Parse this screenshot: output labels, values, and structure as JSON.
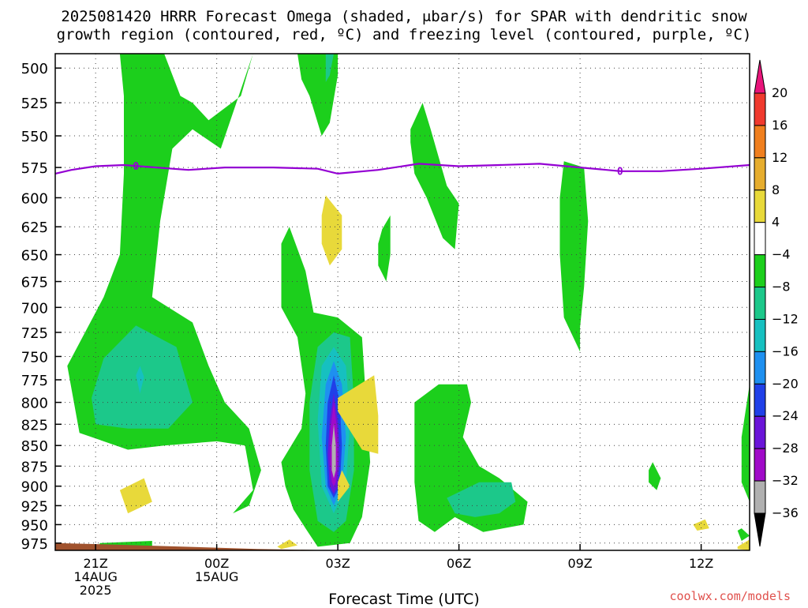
{
  "header": {
    "title_line1": "2025081420 HRRR Forecast Omega (shaded, μbar/s) for SPAR with dendritic snow",
    "title_line2": "growth region (contoured, red, ºC) and freezing level (contoured, purple, ºC)"
  },
  "footer": {
    "source": "coolwx.com/models"
  },
  "chart_data": {
    "type": "heatmap",
    "title": "2025081420 HRRR Forecast Omega (shaded, μbar/s) for SPAR with dendritic snow growth region (contoured, red, ºC) and freezing level (contoured, purple, ºC)",
    "xlabel": "Forecast Time (UTC)",
    "ylabel": "",
    "x_ticks": [
      {
        "hour": 21,
        "label": "21Z",
        "date": "14AUG",
        "year": "2025"
      },
      {
        "hour": 24,
        "label": "00Z",
        "date": "15AUG",
        "year": ""
      },
      {
        "hour": 27,
        "label": "03Z",
        "date": "",
        "year": ""
      },
      {
        "hour": 30,
        "label": "06Z",
        "date": "",
        "year": ""
      },
      {
        "hour": 33,
        "label": "09Z",
        "date": "",
        "year": ""
      },
      {
        "hour": 36,
        "label": "12Z",
        "date": "",
        "year": ""
      }
    ],
    "xlim": [
      20,
      37.2
    ],
    "y_ticks": [
      500,
      525,
      550,
      575,
      600,
      625,
      650,
      675,
      700,
      725,
      750,
      775,
      800,
      825,
      850,
      875,
      900,
      925,
      950,
      975
    ],
    "ylim": [
      490,
      985
    ],
    "y_scale": "log",
    "grid": true,
    "colorbar": {
      "labels": [
        "20",
        "16",
        "12",
        "8",
        "4",
        "−4",
        "−8",
        "−12",
        "−16",
        "−20",
        "−24",
        "−28",
        "−32",
        "−36"
      ],
      "colors": [
        "#e8147a",
        "#f03a2e",
        "#f07f1e",
        "#e6ad2e",
        "#e8d93a",
        "#ffffff",
        "#1ccf1c",
        "#1cc88a",
        "#16c0c0",
        "#1e90f0",
        "#2040e8",
        "#6a14d8",
        "#a00ac8",
        "#b0b0b0",
        "#000000"
      ],
      "position": "right"
    },
    "freezing_level": {
      "label": "0",
      "color": "#9400d3",
      "points": [
        [
          20.0,
          580
        ],
        [
          20.4,
          577
        ],
        [
          21.0,
          574
        ],
        [
          21.7,
          573
        ],
        [
          22.5,
          575
        ],
        [
          23.3,
          577
        ],
        [
          24.2,
          575
        ],
        [
          25.4,
          575
        ],
        [
          26.5,
          576
        ],
        [
          27.0,
          580
        ],
        [
          28.0,
          577
        ],
        [
          29.0,
          572
        ],
        [
          30.0,
          574
        ],
        [
          31.0,
          573
        ],
        [
          32.0,
          572
        ],
        [
          33.0,
          575
        ],
        [
          34.0,
          578
        ],
        [
          35.0,
          578
        ],
        [
          36.0,
          576
        ],
        [
          37.2,
          573
        ]
      ],
      "labels_at": [
        22.0,
        33.99
      ]
    },
    "series": [
      {
        "color": "#1ccf1c",
        "points": [
          [
            21.6,
            490
          ],
          [
            22.7,
            490
          ],
          [
            23.1,
            520
          ],
          [
            23.4,
            525
          ],
          [
            23.8,
            538
          ],
          [
            24.6,
            520
          ],
          [
            24.9,
            490
          ],
          [
            24.1,
            560
          ],
          [
            23.4,
            545
          ],
          [
            22.9,
            560
          ],
          [
            22.6,
            620
          ],
          [
            22.4,
            690
          ],
          [
            23.4,
            715
          ],
          [
            23.8,
            760
          ],
          [
            24.2,
            800
          ],
          [
            24.8,
            830
          ],
          [
            25.1,
            880
          ],
          [
            24.8,
            925
          ],
          [
            24.4,
            935
          ],
          [
            24.9,
            905
          ],
          [
            24.7,
            850
          ],
          [
            24.0,
            845
          ],
          [
            22.7,
            850
          ],
          [
            21.8,
            855
          ],
          [
            20.6,
            835
          ],
          [
            20.3,
            760
          ],
          [
            21.2,
            690
          ],
          [
            21.6,
            650
          ],
          [
            21.7,
            580
          ],
          [
            21.7,
            520
          ]
        ]
      },
      {
        "color": "#1cc88a",
        "points": [
          [
            20.9,
            795
          ],
          [
            21.2,
            752
          ],
          [
            22.0,
            718
          ],
          [
            23.0,
            740
          ],
          [
            23.4,
            800
          ],
          [
            22.8,
            830
          ],
          [
            21.8,
            830
          ],
          [
            21.0,
            825
          ]
        ]
      },
      {
        "color": "#16c0c0",
        "points": [
          [
            22.0,
            770
          ],
          [
            22.1,
            760
          ],
          [
            22.2,
            772
          ],
          [
            22.1,
            790
          ]
        ]
      },
      {
        "color": "#1ccf1c",
        "points": [
          [
            26.0,
            490
          ],
          [
            26.1,
            490
          ],
          [
            26.4,
            490
          ],
          [
            27.0,
            490
          ],
          [
            27.0,
            505
          ],
          [
            26.8,
            540
          ],
          [
            26.6,
            550
          ],
          [
            26.3,
            520
          ],
          [
            26.1,
            508
          ]
        ]
      },
      {
        "color": "#1cc88a",
        "points": [
          [
            26.7,
            490
          ],
          [
            26.8,
            490
          ],
          [
            26.9,
            490
          ],
          [
            26.8,
            505
          ],
          [
            26.7,
            510
          ]
        ]
      },
      {
        "color": "#1ccf1c",
        "points": [
          [
            25.6,
            640
          ],
          [
            25.8,
            625
          ],
          [
            26.2,
            665
          ],
          [
            26.4,
            705
          ],
          [
            27.0,
            710
          ],
          [
            27.6,
            730
          ],
          [
            27.7,
            800
          ],
          [
            27.8,
            870
          ],
          [
            27.6,
            940
          ],
          [
            27.3,
            975
          ],
          [
            26.5,
            980
          ],
          [
            26.2,
            955
          ],
          [
            25.9,
            930
          ],
          [
            25.7,
            900
          ],
          [
            25.6,
            870
          ],
          [
            26.1,
            830
          ],
          [
            26.2,
            790
          ],
          [
            26.0,
            730
          ],
          [
            25.6,
            700
          ]
        ]
      },
      {
        "color": "#1cc88a",
        "points": [
          [
            26.9,
            725
          ],
          [
            27.3,
            730
          ],
          [
            27.4,
            800
          ],
          [
            27.4,
            880
          ],
          [
            27.2,
            945
          ],
          [
            26.9,
            960
          ],
          [
            26.5,
            945
          ],
          [
            26.3,
            880
          ],
          [
            26.3,
            800
          ],
          [
            26.5,
            740
          ]
        ]
      },
      {
        "color": "#16c0c0",
        "points": [
          [
            26.9,
            740
          ],
          [
            27.2,
            760
          ],
          [
            27.3,
            820
          ],
          [
            27.2,
            900
          ],
          [
            26.9,
            935
          ],
          [
            26.6,
            900
          ],
          [
            26.5,
            820
          ],
          [
            26.6,
            760
          ]
        ]
      },
      {
        "color": "#1e90f0",
        "points": [
          [
            26.9,
            755
          ],
          [
            27.1,
            780
          ],
          [
            27.2,
            840
          ],
          [
            27.1,
            900
          ],
          [
            26.9,
            925
          ],
          [
            26.7,
            900
          ],
          [
            26.6,
            840
          ],
          [
            26.7,
            780
          ]
        ]
      },
      {
        "color": "#2040e8",
        "points": [
          [
            26.9,
            770
          ],
          [
            27.05,
            800
          ],
          [
            27.1,
            850
          ],
          [
            27.05,
            900
          ],
          [
            26.9,
            915
          ],
          [
            26.75,
            900
          ],
          [
            26.7,
            850
          ],
          [
            26.75,
            800
          ]
        ]
      },
      {
        "color": "#6a14d8",
        "points": [
          [
            26.9,
            790
          ],
          [
            27.0,
            820
          ],
          [
            27.05,
            860
          ],
          [
            27.0,
            900
          ],
          [
            26.9,
            910
          ],
          [
            26.8,
            900
          ],
          [
            26.75,
            860
          ],
          [
            26.8,
            820
          ]
        ]
      },
      {
        "color": "#a00ac8",
        "points": [
          [
            26.9,
            800
          ],
          [
            26.98,
            830
          ],
          [
            27.0,
            870
          ],
          [
            26.95,
            895
          ],
          [
            26.9,
            900
          ],
          [
            26.85,
            895
          ],
          [
            26.8,
            870
          ],
          [
            26.82,
            830
          ]
        ]
      },
      {
        "color": "#b0b0b0",
        "points": [
          [
            26.9,
            825
          ],
          [
            26.95,
            850
          ],
          [
            26.95,
            880
          ],
          [
            26.9,
            890
          ],
          [
            26.85,
            880
          ],
          [
            26.85,
            850
          ]
        ]
      },
      {
        "color": "#e8d93a",
        "points": [
          [
            26.7,
            598
          ],
          [
            27.1,
            615
          ],
          [
            27.1,
            645
          ],
          [
            26.8,
            660
          ],
          [
            26.6,
            640
          ],
          [
            26.6,
            615
          ]
        ]
      },
      {
        "color": "#e8d93a",
        "points": [
          [
            27.0,
            895
          ],
          [
            27.1,
            880
          ],
          [
            27.3,
            900
          ],
          [
            27.0,
            920
          ]
        ]
      },
      {
        "color": "#e8d93a",
        "points": [
          [
            27.0,
            795
          ],
          [
            27.9,
            770
          ],
          [
            28.0,
            815
          ],
          [
            28.0,
            860
          ],
          [
            27.6,
            855
          ],
          [
            27.0,
            810
          ]
        ]
      },
      {
        "color": "#e8d93a",
        "points": [
          [
            21.6,
            905
          ],
          [
            22.2,
            890
          ],
          [
            22.4,
            920
          ],
          [
            21.8,
            935
          ]
        ]
      },
      {
        "color": "#e8d93a",
        "points": [
          [
            25.5,
            980
          ],
          [
            25.8,
            970
          ],
          [
            26.0,
            978
          ],
          [
            25.6,
            983
          ]
        ]
      },
      {
        "color": "#e8d93a",
        "points": [
          [
            36.9,
            980
          ],
          [
            37.2,
            970
          ],
          [
            37.2,
            985
          ],
          [
            36.9,
            983
          ]
        ]
      },
      {
        "color": "#e8d93a",
        "points": [
          [
            35.8,
            950
          ],
          [
            36.1,
            943
          ],
          [
            36.2,
            955
          ],
          [
            35.9,
            958
          ]
        ]
      },
      {
        "color": "#1ccf1c",
        "points": [
          [
            28.1,
            627
          ],
          [
            28.3,
            615
          ],
          [
            28.3,
            650
          ],
          [
            28.2,
            675
          ],
          [
            28.0,
            660
          ],
          [
            28.0,
            640
          ]
        ]
      },
      {
        "color": "#1ccf1c",
        "points": [
          [
            28.8,
            545
          ],
          [
            29.1,
            525
          ],
          [
            29.3,
            545
          ],
          [
            29.7,
            590
          ],
          [
            30.0,
            605
          ],
          [
            29.9,
            645
          ],
          [
            29.6,
            635
          ],
          [
            29.2,
            600
          ],
          [
            28.9,
            580
          ],
          [
            28.8,
            555
          ]
        ]
      },
      {
        "color": "#1ccf1c",
        "points": [
          [
            28.9,
            800
          ],
          [
            29.5,
            780
          ],
          [
            30.2,
            780
          ],
          [
            30.3,
            800
          ],
          [
            30.1,
            840
          ],
          [
            30.5,
            875
          ],
          [
            31.0,
            890
          ],
          [
            31.7,
            920
          ],
          [
            31.6,
            950
          ],
          [
            30.6,
            960
          ],
          [
            29.9,
            940
          ],
          [
            29.4,
            960
          ],
          [
            29.0,
            945
          ],
          [
            28.9,
            895
          ],
          [
            28.9,
            840
          ]
        ]
      },
      {
        "color": "#1cc88a",
        "points": [
          [
            29.7,
            915
          ],
          [
            30.5,
            895
          ],
          [
            31.3,
            895
          ],
          [
            31.4,
            920
          ],
          [
            31.0,
            935
          ],
          [
            30.4,
            940
          ],
          [
            29.9,
            935
          ]
        ]
      },
      {
        "color": "#1ccf1c",
        "points": [
          [
            32.6,
            570
          ],
          [
            33.1,
            575
          ],
          [
            33.2,
            620
          ],
          [
            33.1,
            680
          ],
          [
            33.0,
            720
          ],
          [
            33.0,
            745
          ],
          [
            32.6,
            710
          ],
          [
            32.5,
            650
          ],
          [
            32.5,
            600
          ]
        ]
      },
      {
        "color": "#1ccf1c",
        "points": [
          [
            34.7,
            880
          ],
          [
            34.8,
            870
          ],
          [
            35.0,
            890
          ],
          [
            34.9,
            905
          ],
          [
            34.7,
            895
          ]
        ]
      },
      {
        "color": "#1ccf1c",
        "points": [
          [
            36.9,
            958
          ],
          [
            37.0,
            955
          ],
          [
            37.2,
            965
          ],
          [
            37.0,
            972
          ]
        ]
      },
      {
        "color": "#1ccf1c",
        "points": [
          [
            37.0,
            840
          ],
          [
            37.2,
            780
          ],
          [
            37.2,
            920
          ],
          [
            37.0,
            895
          ]
        ]
      },
      {
        "color": "#1ccf1c",
        "points": [
          [
            21.1,
            975
          ],
          [
            22.4,
            972
          ],
          [
            22.4,
            985
          ],
          [
            21.1,
            985
          ]
        ]
      },
      {
        "color": "#a0522d",
        "points": [
          [
            20.0,
            975
          ],
          [
            21.5,
            977
          ],
          [
            25.0,
            983
          ],
          [
            27.0,
            985
          ],
          [
            31.0,
            985
          ],
          [
            33.0,
            985
          ],
          [
            37.2,
            985
          ],
          [
            37.2,
            985
          ],
          [
            20.0,
            985
          ]
        ]
      }
    ]
  }
}
